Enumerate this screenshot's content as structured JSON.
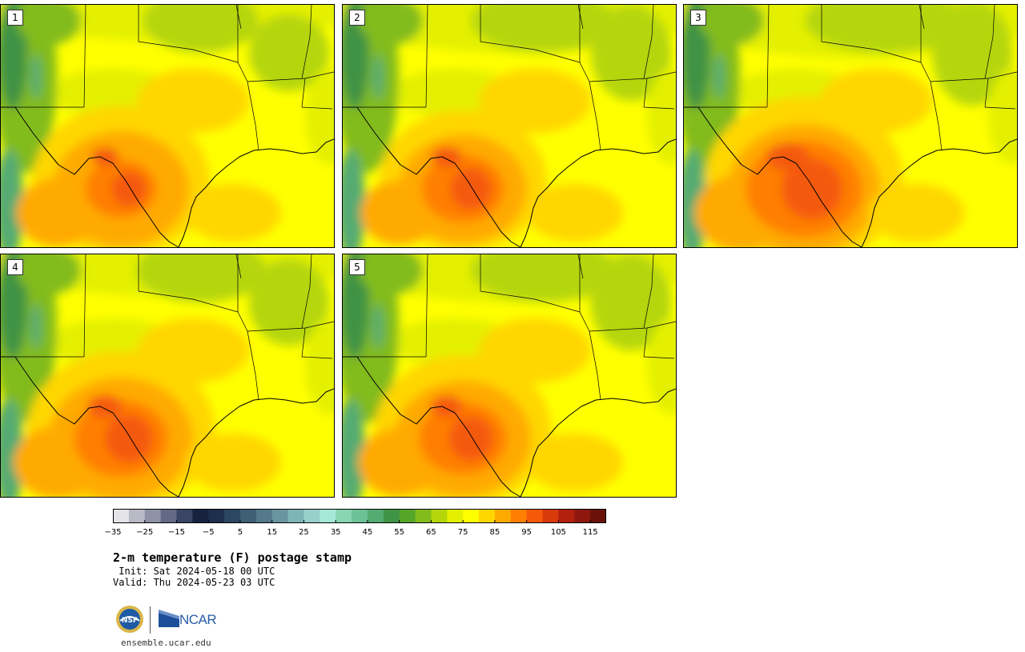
{
  "panels": [
    {
      "label": "1",
      "orange": 0.85,
      "red": 0.35,
      "green": 0.8
    },
    {
      "label": "2",
      "orange": 0.8,
      "red": 0.45,
      "green": 1.0
    },
    {
      "label": "3",
      "orange": 0.95,
      "red": 0.75,
      "green": 1.1
    },
    {
      "label": "4",
      "orange": 0.9,
      "red": 0.55,
      "green": 0.9
    },
    {
      "label": "5",
      "orange": 0.85,
      "red": 0.5,
      "green": 1.0
    }
  ],
  "colorbar": {
    "min": -35,
    "max": 120,
    "step": 5,
    "tick_labels": [
      "−35",
      "−25",
      "−15",
      "−5",
      "5",
      "15",
      "25",
      "35",
      "45",
      "55",
      "65",
      "75",
      "85",
      "95",
      "105",
      "115"
    ],
    "tick_values": [
      -35,
      -25,
      -15,
      -5,
      5,
      15,
      25,
      35,
      45,
      55,
      65,
      75,
      85,
      95,
      105,
      115
    ],
    "colors": [
      "#e3e3e8",
      "#b9b9c6",
      "#8f91a6",
      "#646a86",
      "#3a4566",
      "#16223e",
      "#1e2f4d",
      "#2c4762",
      "#3e5f74",
      "#53798a",
      "#6995a0",
      "#7fb4b6",
      "#97d0cb",
      "#a6e8d8",
      "#88d6b2",
      "#6cc197",
      "#54ab72",
      "#3f9345",
      "#55a52b",
      "#82bb1c",
      "#b5d60b",
      "#e4f000",
      "#ffff00",
      "#ffd600",
      "#ffaa00",
      "#ff7f00",
      "#f45a0a",
      "#d93a0c",
      "#b4200e",
      "#8e180e",
      "#6a1207"
    ]
  },
  "title": "2-m temperature (F) postage stamp",
  "init_line": " Init: Sat 2024-05-18 00 UTC",
  "valid_line": "Valid: Thu 2024-05-23 03 UTC",
  "logos": {
    "nsf": "NSF",
    "ncar": "NCAR"
  },
  "website": "ensemble.ucar.edu"
}
